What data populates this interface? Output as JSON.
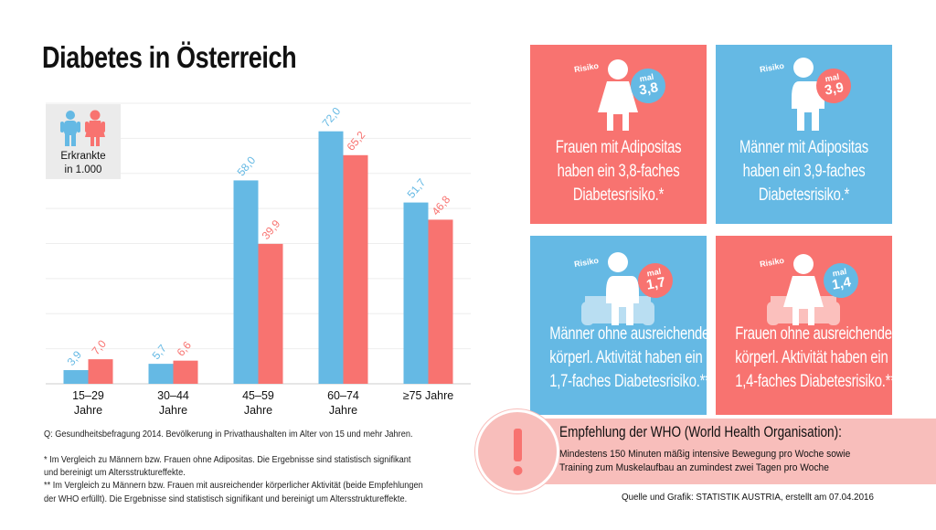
{
  "title": "Diabetes in Österreich",
  "legend": {
    "label_line1": "Erkrankte",
    "label_line2": "in 1.000"
  },
  "colors": {
    "men": "#65b9e4",
    "women": "#f87370",
    "who_band": "#f8bebb"
  },
  "chart_data": {
    "type": "bar",
    "categories": [
      "15–29 Jahre",
      "30–44 Jahre",
      "45–59 Jahre",
      "60–74 Jahre",
      "≥75 Jahre"
    ],
    "category_lines": [
      [
        "15–29",
        "Jahre"
      ],
      [
        "30–44",
        "Jahre"
      ],
      [
        "45–59",
        "Jahre"
      ],
      [
        "60–74",
        "Jahre"
      ],
      [
        "≥75 Jahre",
        ""
      ]
    ],
    "series": [
      {
        "key": "men",
        "values": [
          3.9,
          5.7,
          58.0,
          72.0,
          51.7
        ],
        "labels": [
          "3,9",
          "5,7",
          "58,0",
          "72,0",
          "51,7"
        ]
      },
      {
        "key": "women",
        "values": [
          7.0,
          6.6,
          39.9,
          65.2,
          46.8
        ],
        "labels": [
          "7,0",
          "6,6",
          "39,9",
          "65,2",
          "46,8"
        ]
      }
    ],
    "ylim": [
      0,
      80
    ],
    "grid": true,
    "unit": "Erkrankte in 1.000",
    "legend_placement": "top-left"
  },
  "panels": [
    {
      "risk_label": "Risiko",
      "mal": "mal",
      "value": "3,8",
      "lines": [
        "Frauen mit Adipositas",
        "haben ein 3,8-faches",
        "Diabetesrisiko.*"
      ],
      "figure": "woman-icon",
      "color": "red"
    },
    {
      "risk_label": "Risiko",
      "mal": "mal",
      "value": "3,9",
      "lines": [
        "Männer mit Adipositas",
        "haben ein 3,9-faches",
        "Diabetesrisiko.*"
      ],
      "figure": "man-icon",
      "color": "blue"
    },
    {
      "risk_label": "Risiko",
      "mal": "mal",
      "value": "1,7",
      "lines": [
        "Männer ohne ausreichende",
        "körperl. Aktivität haben ein",
        "1,7-faches Diabetesrisiko.**"
      ],
      "figure": "man-on-sofa-icon",
      "color": "blue"
    },
    {
      "risk_label": "Risiko",
      "mal": "mal",
      "value": "1,4",
      "lines": [
        "Frauen ohne ausreichende",
        "körperl. Aktivität haben ein",
        "1,4-faches Diabetesrisiko.**"
      ],
      "figure": "woman-on-sofa-icon",
      "color": "red"
    }
  ],
  "notes": {
    "source_q": "Q: Gesundheitsbefragung 2014. Bevölkerung in Privathaushalten im Alter von 15 und mehr Jahren.",
    "star1_line1": "* Im Vergleich zu Männern bzw. Frauen ohne Adipositas. Die Ergebnisse sind statistisch signifikant",
    "star1_line2": "und bereinigt um Altersstruktureffekte.",
    "star2_line1": "** Im Vergleich zu Männern bzw. Frauen mit ausreichender körperlicher Aktivität (beide Empfehlungen",
    "star2_line2": "der WHO erfüllt). Die Ergebnisse sind statistisch signifikant und bereinigt um Altersstruktureffekte."
  },
  "who": {
    "title": "Empfehlung der WHO (World Health Organisation):",
    "line1": "Mindestens 150 Minuten mäßig intensive Bewegung pro Woche sowie",
    "line2": "Training zum Muskelaufbau an zumindest zwei Tagen pro Woche"
  },
  "credit": "Quelle und Grafik: STATISTIK AUSTRIA, erstellt am 07.04.2016"
}
